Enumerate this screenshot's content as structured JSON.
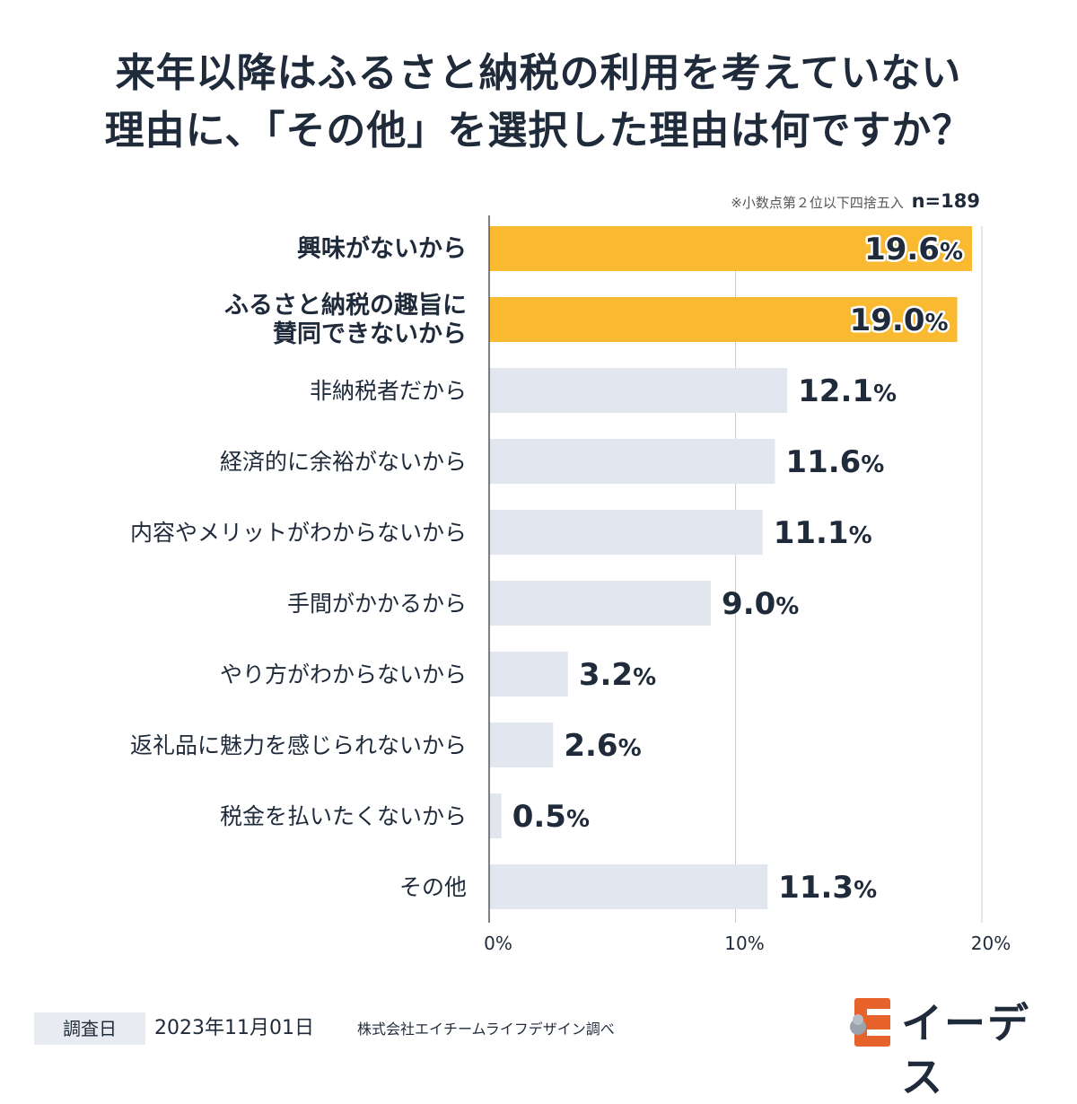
{
  "title_line1": "来年以降はふるさと納税の利用を考えていない",
  "title_line2": "理由に、「その他」を選択した理由は何ですか？",
  "note": "※小数点第２位以下四捨五入",
  "sample": "n=189",
  "colors": {
    "highlight": "#F9B931",
    "normal": "#E2E7EF",
    "grid": "#c9cdd4",
    "text": "#1f2a3a"
  },
  "chart_data": {
    "type": "bar",
    "orientation": "horizontal",
    "title": "来年以降はふるさと納税の利用を考えていない理由に、「その他」を選択した理由は何ですか？",
    "categories": [
      [
        "興味がないから"
      ],
      [
        "ふるさと納税の趣旨に",
        "賛同できないから"
      ],
      [
        "非納税者だから"
      ],
      [
        "経済的に余裕がないから"
      ],
      [
        "内容やメリットがわからないから"
      ],
      [
        "手間がかかるから"
      ],
      [
        "やり方がわからないから"
      ],
      [
        "返礼品に魅力を感じられないから"
      ],
      [
        "税金を払いたくないから"
      ],
      [
        "その他"
      ]
    ],
    "values": [
      19.6,
      19.0,
      12.1,
      11.6,
      11.1,
      9.0,
      3.2,
      2.6,
      0.5,
      11.3
    ],
    "value_labels": [
      "19.6",
      "19.0",
      "12.1",
      "11.6",
      "11.1",
      "9.0",
      "3.2",
      "2.6",
      "0.5",
      "11.3"
    ],
    "unit": "%",
    "highlighted": [
      true,
      true,
      false,
      false,
      false,
      false,
      false,
      false,
      false,
      false
    ],
    "xlim": [
      0,
      20
    ],
    "ticks": [
      0,
      10,
      20
    ],
    "tick_labels": [
      "0%",
      "10%",
      "20%"
    ],
    "grid": true
  },
  "footer": {
    "date_label": "調査日",
    "date": "2023年11月01日",
    "source": "株式会社エイチームライフデザイン調べ"
  },
  "logo": {
    "text": "イーデス",
    "icon": "e-mascot-icon"
  }
}
